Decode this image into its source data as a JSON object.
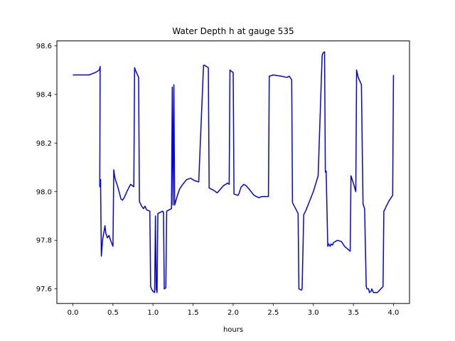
{
  "chart_data": {
    "type": "line",
    "title": "Water Depth h at gauge 535",
    "xlabel": "hours",
    "ylabel": "",
    "xlim": [
      -0.2,
      4.2
    ],
    "ylim": [
      97.54,
      98.62
    ],
    "xticks": [
      0.0,
      0.5,
      1.0,
      1.5,
      2.0,
      2.5,
      3.0,
      3.5,
      4.0
    ],
    "xtick_labels": [
      "0.0",
      "0.5",
      "1.0",
      "1.5",
      "2.0",
      "2.5",
      "3.0",
      "3.5",
      "4.0"
    ],
    "yticks": [
      97.6,
      97.8,
      98.0,
      98.2,
      98.4,
      98.6
    ],
    "ytick_labels": [
      "97.6",
      "97.8",
      "98.0",
      "98.2",
      "98.4",
      "98.6"
    ],
    "grid": false,
    "series": [
      {
        "color": "#0000ff",
        "x": [
          0.0,
          0.2,
          0.28,
          0.33,
          0.34,
          0.335,
          0.345,
          0.355,
          0.37,
          0.4,
          0.41,
          0.43,
          0.45,
          0.47,
          0.5,
          0.51,
          0.52,
          0.53,
          0.56,
          0.6,
          0.62,
          0.64,
          0.68,
          0.72,
          0.76,
          0.77,
          0.78,
          0.82,
          0.83,
          0.85,
          0.88,
          0.9,
          0.92,
          0.96,
          0.97,
          0.98,
          1.0,
          1.02,
          1.03,
          1.04,
          1.05,
          1.06,
          1.12,
          1.13,
          1.14,
          1.16,
          1.17,
          1.23,
          1.24,
          1.25,
          1.26,
          1.27,
          1.3,
          1.33,
          1.35,
          1.37,
          1.42,
          1.47,
          1.52,
          1.57,
          1.63,
          1.64,
          1.69,
          1.7,
          1.76,
          1.8,
          1.84,
          1.88,
          1.93,
          1.95,
          1.96,
          2.0,
          2.01,
          2.06,
          2.07,
          2.1,
          2.12,
          2.13,
          2.16,
          2.2,
          2.26,
          2.32,
          2.36,
          2.44,
          2.45,
          2.5,
          2.6,
          2.67,
          2.7,
          2.73,
          2.74,
          2.81,
          2.82,
          2.85,
          2.86,
          2.88,
          2.91,
          2.94,
          3.0,
          3.06,
          3.11,
          3.12,
          3.14,
          3.15,
          3.16,
          3.18,
          3.19,
          3.21,
          3.22,
          3.24,
          3.25,
          3.3,
          3.35,
          3.39,
          3.46,
          3.47,
          3.5,
          3.53,
          3.54,
          3.56,
          3.6,
          3.62,
          3.64,
          3.66,
          3.67,
          3.69,
          3.7,
          3.72,
          3.73,
          3.75,
          3.8,
          3.87,
          3.88,
          3.89,
          3.91,
          3.95,
          3.99,
          4.0
        ],
        "y": [
          98.48,
          98.48,
          98.49,
          98.5,
          98.515,
          98.02,
          98.05,
          97.735,
          97.8,
          97.86,
          97.83,
          97.81,
          97.82,
          97.8,
          97.775,
          98.09,
          98.065,
          98.05,
          98.02,
          97.97,
          97.965,
          97.975,
          98.005,
          98.03,
          98.02,
          98.51,
          98.5,
          98.47,
          97.96,
          97.945,
          97.93,
          97.94,
          97.925,
          97.92,
          97.61,
          97.6,
          97.59,
          97.585,
          97.9,
          97.6,
          97.585,
          97.91,
          97.92,
          97.915,
          97.6,
          97.605,
          97.92,
          97.93,
          98.43,
          97.945,
          98.44,
          97.945,
          97.98,
          98.01,
          98.02,
          98.03,
          98.05,
          98.055,
          98.045,
          98.04,
          98.52,
          98.52,
          98.51,
          98.015,
          98.005,
          97.995,
          98.01,
          98.025,
          98.035,
          98.03,
          98.5,
          98.49,
          97.99,
          97.985,
          97.99,
          98.02,
          98.025,
          98.03,
          98.025,
          98.01,
          97.985,
          97.975,
          97.98,
          97.98,
          98.475,
          98.48,
          98.475,
          98.47,
          98.475,
          98.46,
          97.955,
          97.91,
          97.6,
          97.595,
          97.6,
          97.905,
          97.925,
          97.95,
          98.0,
          98.065,
          98.56,
          98.57,
          98.575,
          98.08,
          98.085,
          97.775,
          97.785,
          97.775,
          97.785,
          97.78,
          97.79,
          97.8,
          97.795,
          97.775,
          97.755,
          98.065,
          98.035,
          98.0,
          98.5,
          98.47,
          98.44,
          97.95,
          97.93,
          97.61,
          97.6,
          97.6,
          97.585,
          97.59,
          97.6,
          97.585,
          97.585,
          97.61,
          97.92,
          97.925,
          97.94,
          97.965,
          97.985,
          98.48
        ]
      }
    ]
  }
}
